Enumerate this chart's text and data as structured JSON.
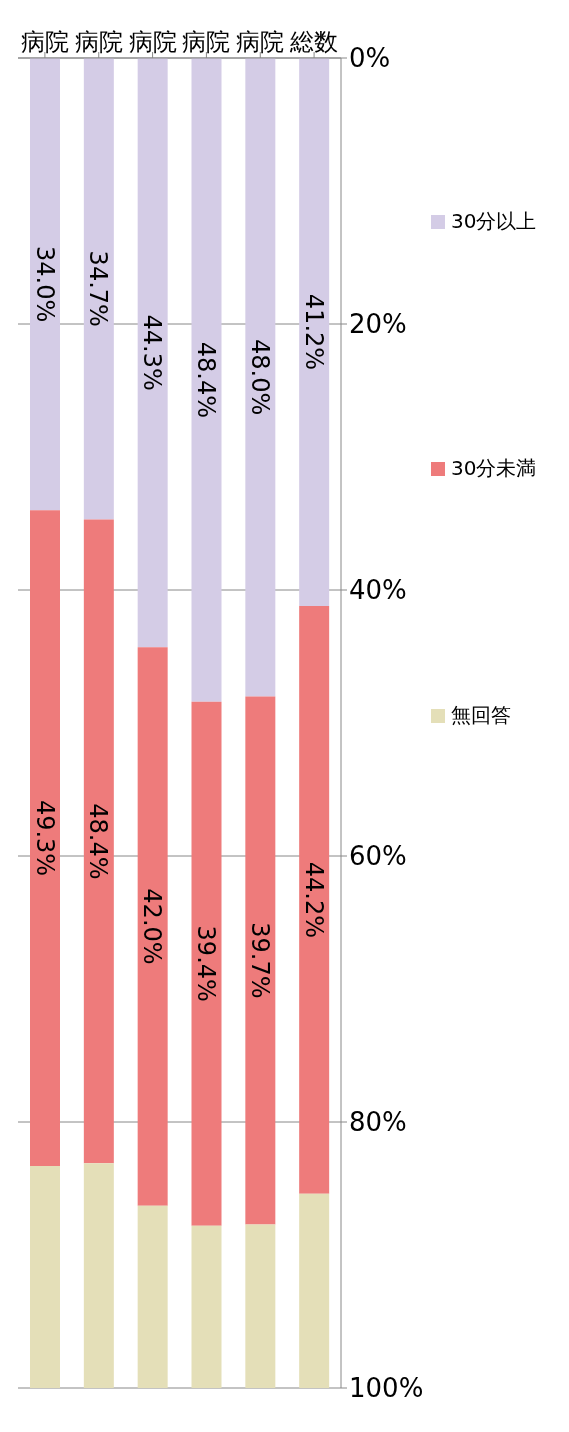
{
  "chart_data": {
    "type": "bar",
    "stacked": true,
    "categories": [
      "病院",
      "病院",
      "病院",
      "病院",
      "病院",
      "総数"
    ],
    "series": [
      {
        "name": "30分以上",
        "color": "#d4cce6",
        "values": [
          34.0,
          34.7,
          44.3,
          48.4,
          48.0,
          41.2
        ],
        "value_labels": [
          "34.0%",
          "34.7%",
          "44.3%",
          "48.4%",
          "48.0%",
          "41.2%"
        ]
      },
      {
        "name": "30分未満",
        "color": "#ee7b7b",
        "values": [
          49.3,
          48.4,
          42.0,
          39.4,
          39.7,
          44.2
        ],
        "value_labels": [
          "49.3%",
          "48.4%",
          "42.0%",
          "39.4%",
          "39.7%",
          "44.2%"
        ]
      },
      {
        "name": "無回答",
        "color": "#e4dfb8",
        "values": [
          16.7,
          16.9,
          13.7,
          12.2,
          12.3,
          14.6
        ]
      }
    ],
    "ylim": [
      100,
      0
    ],
    "yticks": [
      {
        "value": 0,
        "label": "0%"
      },
      {
        "value": 20,
        "label": "20%"
      },
      {
        "value": 40,
        "label": "40%"
      },
      {
        "value": 60,
        "label": "60%"
      },
      {
        "value": 80,
        "label": "80%"
      },
      {
        "value": 100,
        "label": "100%"
      }
    ],
    "grid": "y",
    "legend": "right"
  }
}
